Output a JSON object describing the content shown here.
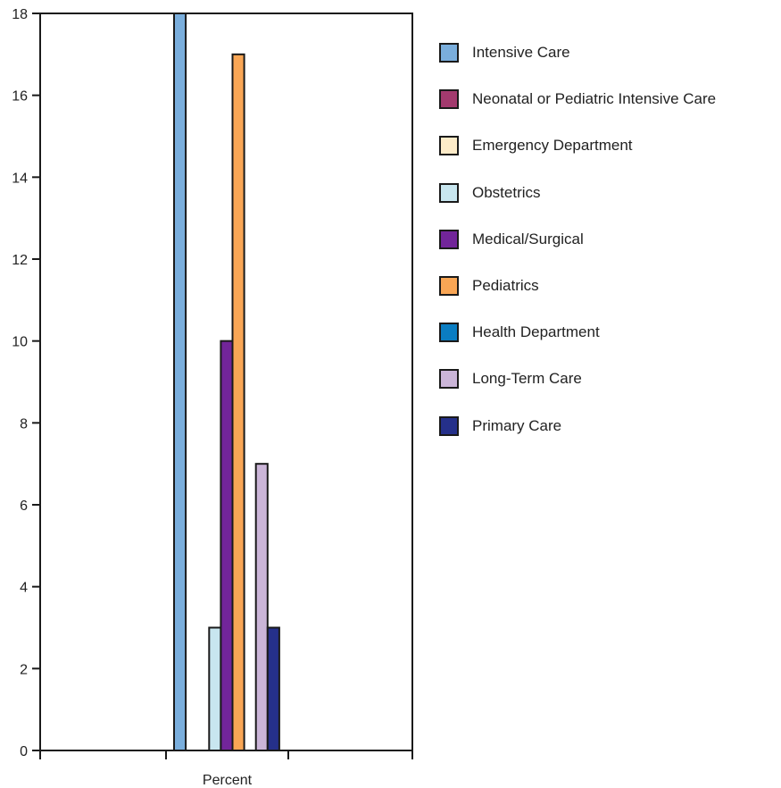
{
  "chart_data": {
    "type": "bar",
    "categories": [
      "Percent"
    ],
    "xlabel": "Percent",
    "ylim": [
      0,
      18
    ],
    "yticks": [
      0,
      2,
      4,
      6,
      8,
      10,
      12,
      14,
      16,
      18
    ],
    "grid": false,
    "legend_position": "right",
    "series": [
      {
        "name": "Intensive Care",
        "values": [
          18
        ],
        "color": "#7aaedc"
      },
      {
        "name": "Neonatal or Pediatric Intensive Care",
        "values": [
          0
        ],
        "color": "#a33a6e"
      },
      {
        "name": "Emergency Department",
        "values": [
          0
        ],
        "color": "#fdebc8"
      },
      {
        "name": "Obstetrics",
        "values": [
          3
        ],
        "color": "#c8e6ef"
      },
      {
        "name": "Medical/Surgical",
        "values": [
          10
        ],
        "color": "#72259a"
      },
      {
        "name": "Pediatrics",
        "values": [
          17
        ],
        "color": "#f9a655"
      },
      {
        "name": "Health Department",
        "values": [
          0
        ],
        "color": "#0a7dc2"
      },
      {
        "name": "Long-Term Care",
        "values": [
          7
        ],
        "color": "#cbb5d8"
      },
      {
        "name": "Primary Care",
        "values": [
          3
        ],
        "color": "#25308a"
      }
    ]
  }
}
